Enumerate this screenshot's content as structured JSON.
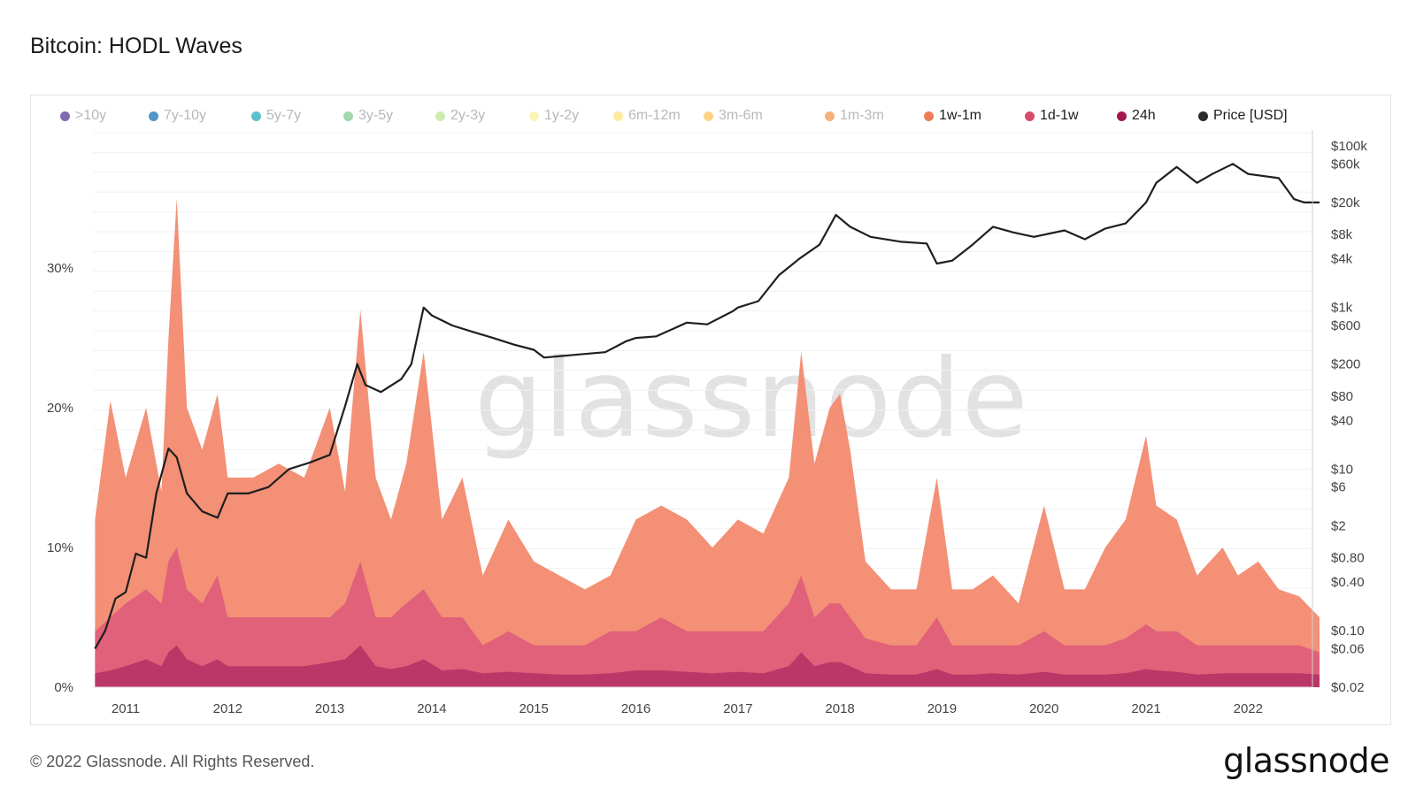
{
  "header": {
    "title": "Bitcoin: HODL Waves"
  },
  "watermark": "glassnode",
  "footer": {
    "copyright": "© 2022 Glassnode. All Rights Reserved.",
    "brand": "glassnode"
  },
  "chart_data": {
    "type": "area",
    "title": "Bitcoin: HODL Waves",
    "x_ticks": [
      "2011",
      "2012",
      "2013",
      "2014",
      "2015",
      "2016",
      "2017",
      "2018",
      "2019",
      "2020",
      "2021",
      "2022"
    ],
    "y_left_ticks": [
      "0%",
      "10%",
      "20%",
      "30%"
    ],
    "y_left_range": [
      0,
      40
    ],
    "y_right_ticks": [
      "$100k",
      "$60k",
      "$20k",
      "$8k",
      "$4k",
      "$1k",
      "$600",
      "$200",
      "$80",
      "$40",
      "$10",
      "$6",
      "$2",
      "$0.80",
      "$0.40",
      "$0.10",
      "$0.06",
      "$0.02"
    ],
    "y_right_scale": "log",
    "grid": true,
    "legend_position": "top",
    "legend": [
      {
        "name": ">10y",
        "color": "#6a51a3",
        "active": false
      },
      {
        "name": "7y-10y",
        "color": "#3182bd",
        "active": false
      },
      {
        "name": "5y-7y",
        "color": "#41b6c4",
        "active": false
      },
      {
        "name": "3y-5y",
        "color": "#8fd19e",
        "active": false
      },
      {
        "name": "2y-3y",
        "color": "#c7e9a0",
        "active": false
      },
      {
        "name": "1y-2y",
        "color": "#f7f4a8",
        "active": false
      },
      {
        "name": "6m-12m",
        "color": "#fde68a",
        "active": false
      },
      {
        "name": "3m-6m",
        "color": "#fdcb6e",
        "active": false
      },
      {
        "name": "1m-3m",
        "color": "#f4a261",
        "active": false
      },
      {
        "name": "1w-1m",
        "color": "#ef7b57",
        "active": true
      },
      {
        "name": "1d-1w",
        "color": "#d94b6a",
        "active": true
      },
      {
        "name": "24h",
        "color": "#a3174d",
        "active": true
      },
      {
        "name": "Price [USD]",
        "color": "#2a2a2a",
        "active": true
      }
    ],
    "x": [
      2010.7,
      2010.85,
      2011.0,
      2011.2,
      2011.35,
      2011.42,
      2011.5,
      2011.6,
      2011.75,
      2011.9,
      2012.0,
      2012.25,
      2012.5,
      2012.75,
      2013.0,
      2013.15,
      2013.3,
      2013.45,
      2013.6,
      2013.75,
      2013.92,
      2014.1,
      2014.3,
      2014.5,
      2014.75,
      2015.0,
      2015.25,
      2015.5,
      2015.75,
      2016.0,
      2016.25,
      2016.5,
      2016.75,
      2017.0,
      2017.25,
      2017.5,
      2017.62,
      2017.75,
      2017.9,
      2018.0,
      2018.1,
      2018.25,
      2018.5,
      2018.75,
      2018.95,
      2019.1,
      2019.3,
      2019.5,
      2019.75,
      2020.0,
      2020.2,
      2020.4,
      2020.6,
      2020.8,
      2021.0,
      2021.1,
      2021.3,
      2021.5,
      2021.75,
      2021.9,
      2022.1,
      2022.3,
      2022.5,
      2022.7
    ],
    "series": [
      {
        "name": "1w-1m",
        "values": [
          12,
          20.5,
          15,
          20,
          14,
          25,
          35,
          20,
          17,
          21,
          15,
          15,
          16,
          15,
          20,
          14,
          27,
          15,
          12,
          16,
          24,
          12,
          15,
          8,
          12,
          9,
          8,
          7,
          8,
          12,
          13,
          12,
          10,
          12,
          11,
          15,
          24,
          16,
          20,
          21,
          17,
          9,
          7,
          7,
          15,
          7,
          7,
          8,
          6,
          13,
          7,
          7,
          10,
          12,
          18,
          13,
          12,
          8,
          10,
          8,
          9,
          7,
          6.5,
          5
        ]
      },
      {
        "name": "1d-1w",
        "values": [
          4,
          5,
          6,
          7,
          6,
          9,
          10,
          7,
          6,
          8,
          5,
          5,
          5,
          5,
          5,
          6,
          9,
          5,
          5,
          6,
          7,
          5,
          5,
          3,
          4,
          3,
          3,
          3,
          4,
          4,
          5,
          4,
          4,
          4,
          4,
          6,
          8,
          5,
          6,
          6,
          5,
          3.5,
          3,
          3,
          5,
          3,
          3,
          3,
          3,
          4,
          3,
          3,
          3,
          3.5,
          4.5,
          4,
          4,
          3,
          3,
          3,
          3,
          3,
          3,
          2.5
        ]
      },
      {
        "name": "24h",
        "values": [
          1,
          1.2,
          1.5,
          2,
          1.5,
          2.5,
          3,
          2,
          1.5,
          2,
          1.5,
          1.5,
          1.5,
          1.5,
          1.8,
          2,
          3,
          1.5,
          1.3,
          1.5,
          2,
          1.2,
          1.3,
          1,
          1.1,
          1,
          0.9,
          0.9,
          1,
          1.2,
          1.2,
          1.1,
          1,
          1.1,
          1,
          1.5,
          2.5,
          1.5,
          1.8,
          1.8,
          1.5,
          1,
          0.9,
          0.9,
          1.3,
          0.9,
          0.9,
          1,
          0.9,
          1.1,
          0.9,
          0.9,
          0.9,
          1,
          1.3,
          1.2,
          1.1,
          0.9,
          1,
          1,
          1,
          1,
          1,
          0.9
        ]
      }
    ],
    "price_series": {
      "name": "Price [USD]",
      "x": [
        2010.7,
        2010.8,
        2010.9,
        2011.0,
        2011.1,
        2011.2,
        2011.3,
        2011.42,
        2011.5,
        2011.6,
        2011.75,
        2011.9,
        2012.0,
        2012.2,
        2012.4,
        2012.6,
        2012.8,
        2013.0,
        2013.15,
        2013.27,
        2013.35,
        2013.5,
        2013.7,
        2013.8,
        2013.92,
        2014.0,
        2014.2,
        2014.4,
        2014.6,
        2014.8,
        2015.0,
        2015.1,
        2015.4,
        2015.7,
        2015.9,
        2016.0,
        2016.2,
        2016.5,
        2016.7,
        2016.95,
        2017.0,
        2017.2,
        2017.4,
        2017.6,
        2017.8,
        2017.96,
        2018.1,
        2018.3,
        2018.6,
        2018.85,
        2018.95,
        2019.1,
        2019.3,
        2019.5,
        2019.7,
        2019.9,
        2020.2,
        2020.4,
        2020.6,
        2020.8,
        2021.0,
        2021.1,
        2021.3,
        2021.5,
        2021.65,
        2021.85,
        2022.0,
        2022.3,
        2022.45,
        2022.55,
        2022.7
      ],
      "values": [
        0.06,
        0.1,
        0.25,
        0.3,
        0.9,
        0.8,
        5,
        18,
        14,
        5,
        3,
        2.5,
        5,
        5,
        6,
        10,
        12,
        15,
        60,
        200,
        110,
        90,
        130,
        200,
        1000,
        800,
        600,
        500,
        420,
        350,
        300,
        240,
        260,
        280,
        380,
        420,
        440,
        650,
        620,
        900,
        1000,
        1200,
        2500,
        4000,
        6000,
        14000,
        10000,
        7500,
        6500,
        6200,
        3500,
        3800,
        6000,
        10000,
        8500,
        7500,
        9000,
        7000,
        9500,
        11000,
        20000,
        35000,
        55000,
        35000,
        45000,
        60000,
        45000,
        40000,
        22000,
        20000,
        20000
      ]
    }
  }
}
